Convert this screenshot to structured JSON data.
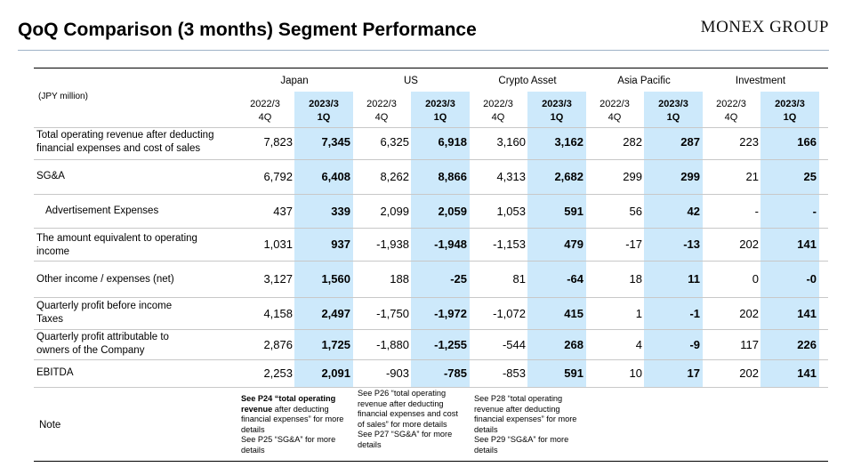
{
  "title": "QoQ Comparison (3 months) Segment Performance",
  "logo": "MONEX GROUP",
  "unit": "(JPY million)",
  "segments": [
    "Japan",
    "US",
    "Crypto Asset",
    "Asia Pacific",
    "Investment"
  ],
  "periods": {
    "prev": "2022/3\n4Q",
    "curr": "2023/3\n1Q"
  },
  "rows": [
    {
      "label": "Total operating revenue after deducting financial expenses and cost of sales",
      "values": [
        "7,823",
        "7,345",
        "6,325",
        "6,918",
        "3,160",
        "3,162",
        "282",
        "287",
        "223",
        "166"
      ]
    },
    {
      "label": "SG&A",
      "values": [
        "6,792",
        "6,408",
        "8,262",
        "8,866",
        "4,313",
        "2,682",
        "299",
        "299",
        "21",
        "25"
      ]
    },
    {
      "label": "Advertisement Expenses",
      "values": [
        "437",
        "339",
        "2,099",
        "2,059",
        "1,053",
        "591",
        "56",
        "42",
        "-",
        "-"
      ]
    },
    {
      "label": "The amount equivalent to operating income",
      "values": [
        "1,031",
        "937",
        "-1,938",
        "-1,948",
        "-1,153",
        "479",
        "-17",
        "-13",
        "202",
        "141"
      ]
    },
    {
      "label": "Other income / expenses (net)",
      "values": [
        "3,127",
        "1,560",
        "188",
        "-25",
        "81",
        "-64",
        "18",
        "11",
        "0",
        "-0"
      ]
    },
    {
      "label": "Quarterly profit before income Taxes",
      "values": [
        "4,158",
        "2,497",
        "-1,750",
        "-1,972",
        "-1,072",
        "415",
        "1",
        "-1",
        "202",
        "141"
      ]
    },
    {
      "label": "Quarterly profit attributable to owners of the Company",
      "values": [
        "2,876",
        "1,725",
        "-1,880",
        "-1,255",
        "-544",
        "268",
        "4",
        "-9",
        "117",
        "226"
      ]
    },
    {
      "label": "EBITDA",
      "values": [
        "2,253",
        "2,091",
        "-903",
        "-785",
        "-853",
        "591",
        "10",
        "17",
        "202",
        "141"
      ]
    }
  ],
  "note_label": "Note",
  "notes": {
    "japan": {
      "p1_bold": "See P24 “total operating revenue",
      "p1_rest": " after deducting financial expenses” for more details",
      "p2": "See P25 “SG&A” for more details"
    },
    "us": {
      "p1": "See P26 “total operating revenue after deducting financial expenses and cost of sales” for more details",
      "p2": "See P27 “SG&A” for more details"
    },
    "crypto": {
      "p1": "See P28 “total operating revenue after deducting financial expenses” for more details",
      "p2": "See P29 “SG&A” for more details"
    }
  }
}
